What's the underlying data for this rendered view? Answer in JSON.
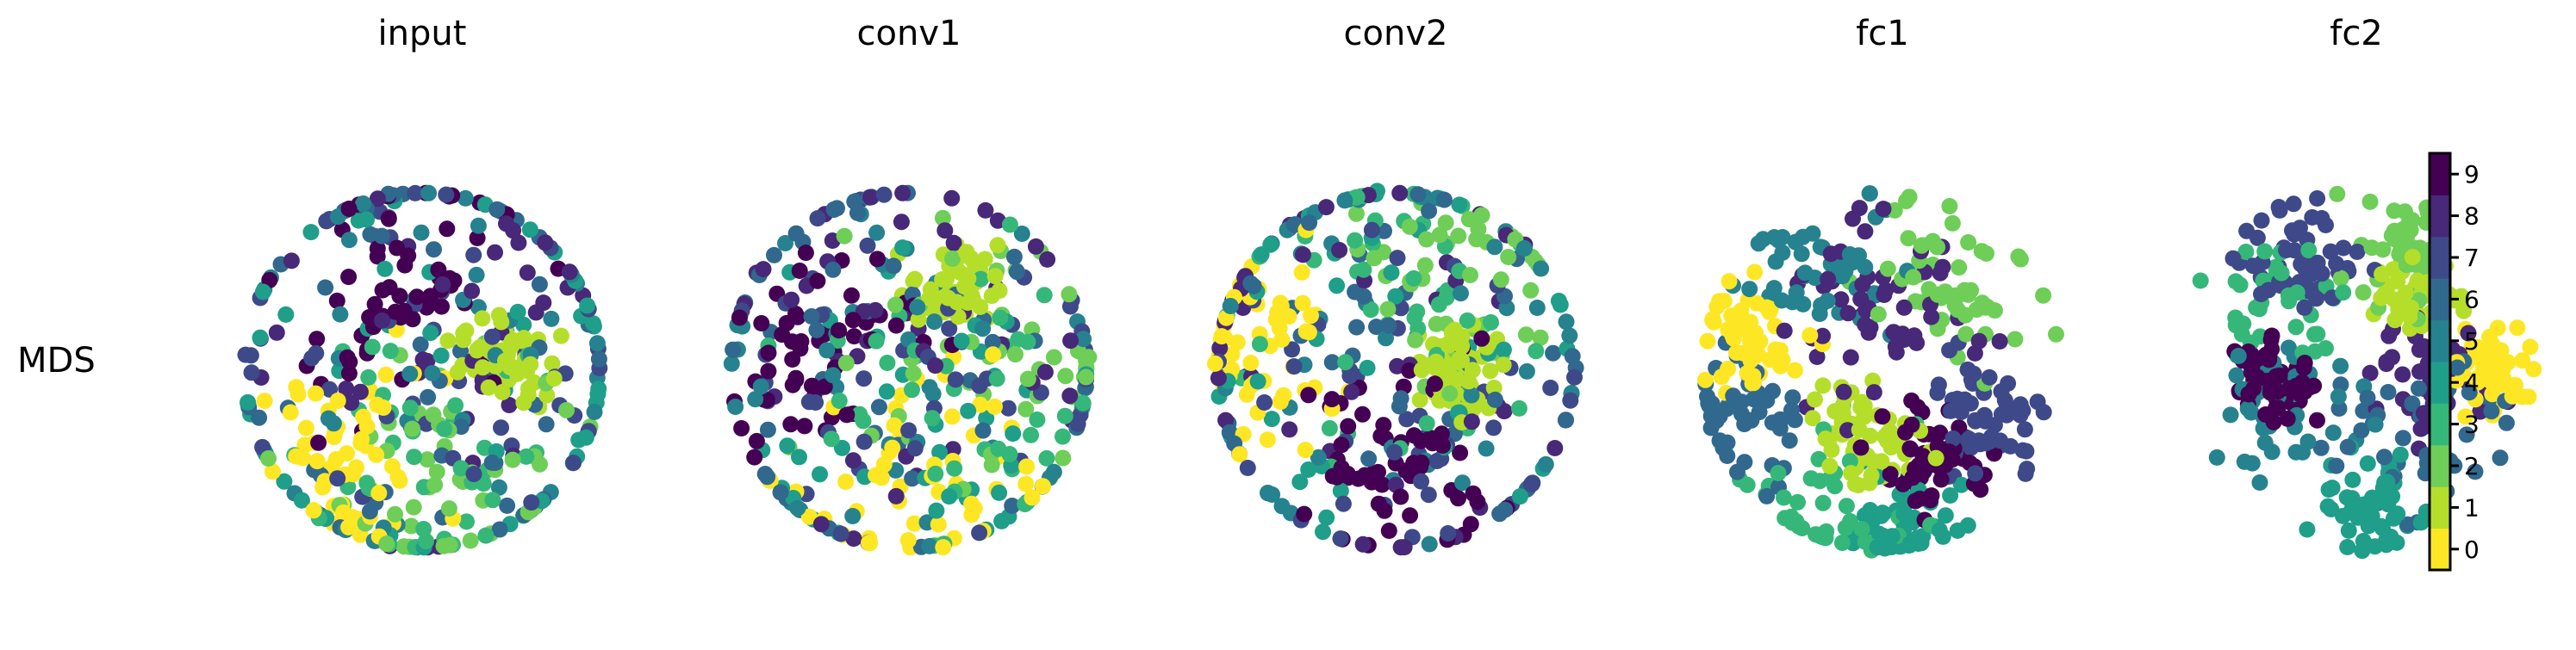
{
  "figure": {
    "row_label": "MDS"
  },
  "colormap": {
    "name": "viridis",
    "class_colors": [
      "#fde725",
      "#b5de2b",
      "#6ece58",
      "#35b779",
      "#1f9e89",
      "#26828e",
      "#31688e",
      "#3e4989",
      "#482878",
      "#440154"
    ]
  },
  "chart_data": [
    {
      "type": "scatter",
      "title": "input",
      "clusters": [
        {
          "class": 0,
          "cx": -0.4,
          "cy": -0.55,
          "spread": 0.26,
          "n": 60
        },
        {
          "class": 1,
          "cx": 0.45,
          "cy": 0.05,
          "spread": 0.12,
          "n": 60
        },
        {
          "class": 2,
          "cx": 0.25,
          "cy": -0.55,
          "spread": 0.4,
          "n": 45
        },
        {
          "class": 3,
          "cx": 0.2,
          "cy": -0.4,
          "spread": 0.45,
          "n": 45
        },
        {
          "class": 4,
          "cx": 0.0,
          "cy": 0.0,
          "spread": 0.75,
          "n": 45
        },
        {
          "class": 5,
          "cx": -0.05,
          "cy": 0.05,
          "spread": 0.7,
          "n": 45
        },
        {
          "class": 6,
          "cx": -0.05,
          "cy": -0.05,
          "spread": 0.7,
          "n": 45
        },
        {
          "class": 7,
          "cx": 0.05,
          "cy": 0.1,
          "spread": 0.7,
          "n": 45
        },
        {
          "class": 8,
          "cx": 0.0,
          "cy": 0.25,
          "spread": 0.65,
          "n": 45
        },
        {
          "class": 9,
          "cx": -0.15,
          "cy": 0.45,
          "spread": 0.35,
          "n": 60
        }
      ]
    },
    {
      "type": "scatter",
      "title": "conv1",
      "clusters": [
        {
          "class": 0,
          "cx": 0.0,
          "cy": -0.65,
          "spread": 0.35,
          "n": 55
        },
        {
          "class": 1,
          "cx": 0.25,
          "cy": 0.45,
          "spread": 0.12,
          "n": 55
        },
        {
          "class": 2,
          "cx": 0.5,
          "cy": 0.1,
          "spread": 0.35,
          "n": 45
        },
        {
          "class": 3,
          "cx": 0.4,
          "cy": -0.1,
          "spread": 0.45,
          "n": 45
        },
        {
          "class": 4,
          "cx": -0.1,
          "cy": -0.2,
          "spread": 0.7,
          "n": 45
        },
        {
          "class": 5,
          "cx": 0.0,
          "cy": 0.0,
          "spread": 0.75,
          "n": 45
        },
        {
          "class": 6,
          "cx": -0.1,
          "cy": 0.1,
          "spread": 0.75,
          "n": 45
        },
        {
          "class": 7,
          "cx": 0.1,
          "cy": 0.05,
          "spread": 0.7,
          "n": 45
        },
        {
          "class": 8,
          "cx": -0.05,
          "cy": 0.35,
          "spread": 0.6,
          "n": 45
        },
        {
          "class": 9,
          "cx": -0.55,
          "cy": 0.15,
          "spread": 0.3,
          "n": 55
        }
      ]
    },
    {
      "type": "scatter",
      "title": "conv2",
      "clusters": [
        {
          "class": 0,
          "cx": -0.75,
          "cy": 0.05,
          "spread": 0.25,
          "n": 55
        },
        {
          "class": 1,
          "cx": 0.35,
          "cy": 0.05,
          "spread": 0.12,
          "n": 55
        },
        {
          "class": 2,
          "cx": 0.35,
          "cy": 0.55,
          "spread": 0.35,
          "n": 45
        },
        {
          "class": 3,
          "cx": 0.0,
          "cy": 0.55,
          "spread": 0.45,
          "n": 45
        },
        {
          "class": 4,
          "cx": -0.1,
          "cy": 0.2,
          "spread": 0.7,
          "n": 45
        },
        {
          "class": 5,
          "cx": -0.1,
          "cy": 0.1,
          "spread": 0.7,
          "n": 45
        },
        {
          "class": 6,
          "cx": -0.2,
          "cy": 0.0,
          "spread": 0.7,
          "n": 45
        },
        {
          "class": 7,
          "cx": 0.1,
          "cy": -0.35,
          "spread": 0.55,
          "n": 45
        },
        {
          "class": 8,
          "cx": 0.0,
          "cy": 0.0,
          "spread": 0.7,
          "n": 45
        },
        {
          "class": 9,
          "cx": 0.0,
          "cy": -0.5,
          "spread": 0.3,
          "n": 60
        }
      ]
    },
    {
      "type": "scatter",
      "title": "fc1",
      "clusters": [
        {
          "class": 0,
          "cx": -0.75,
          "cy": 0.2,
          "spread": 0.15,
          "n": 55
        },
        {
          "class": 1,
          "cx": -0.05,
          "cy": -0.4,
          "spread": 0.15,
          "n": 55
        },
        {
          "class": 2,
          "cx": 0.35,
          "cy": 0.5,
          "spread": 0.25,
          "n": 55
        },
        {
          "class": 3,
          "cx": -0.3,
          "cy": -0.8,
          "spread": 0.25,
          "n": 40
        },
        {
          "class": 4,
          "cx": 0.15,
          "cy": -0.85,
          "spread": 0.15,
          "n": 55
        },
        {
          "class": 5,
          "cx": -0.35,
          "cy": 0.65,
          "spread": 0.2,
          "n": 50
        },
        {
          "class": 6,
          "cx": -0.75,
          "cy": -0.3,
          "spread": 0.15,
          "n": 55
        },
        {
          "class": 7,
          "cx": 0.55,
          "cy": -0.25,
          "spread": 0.18,
          "n": 55
        },
        {
          "class": 8,
          "cx": -0.05,
          "cy": 0.25,
          "spread": 0.25,
          "n": 55
        },
        {
          "class": 9,
          "cx": 0.25,
          "cy": -0.45,
          "spread": 0.13,
          "n": 60
        }
      ]
    },
    {
      "type": "scatter",
      "title": "fc2",
      "clusters": [
        {
          "class": 0,
          "cx": 0.75,
          "cy": 0.0,
          "spread": 0.12,
          "n": 50
        },
        {
          "class": 1,
          "cx": 0.35,
          "cy": 0.4,
          "spread": 0.1,
          "n": 50
        },
        {
          "class": 2,
          "cx": 0.3,
          "cy": 0.65,
          "spread": 0.18,
          "n": 50
        },
        {
          "class": 3,
          "cx": -0.4,
          "cy": 0.35,
          "spread": 0.18,
          "n": 45
        },
        {
          "class": 4,
          "cx": 0.1,
          "cy": -0.75,
          "spread": 0.15,
          "n": 55
        },
        {
          "class": 5,
          "cx": -0.4,
          "cy": -0.2,
          "spread": 0.18,
          "n": 45
        },
        {
          "class": 6,
          "cx": 0.35,
          "cy": -0.35,
          "spread": 0.25,
          "n": 45
        },
        {
          "class": 7,
          "cx": -0.3,
          "cy": 0.6,
          "spread": 0.18,
          "n": 55
        },
        {
          "class": 8,
          "cx": 0.4,
          "cy": -0.05,
          "spread": 0.15,
          "n": 50
        },
        {
          "class": 9,
          "cx": -0.45,
          "cy": -0.05,
          "spread": 0.12,
          "n": 60
        }
      ]
    }
  ],
  "colorbar": {
    "ticks": [
      "0",
      "1",
      "2",
      "3",
      "4",
      "5",
      "6",
      "7",
      "8",
      "9"
    ]
  }
}
